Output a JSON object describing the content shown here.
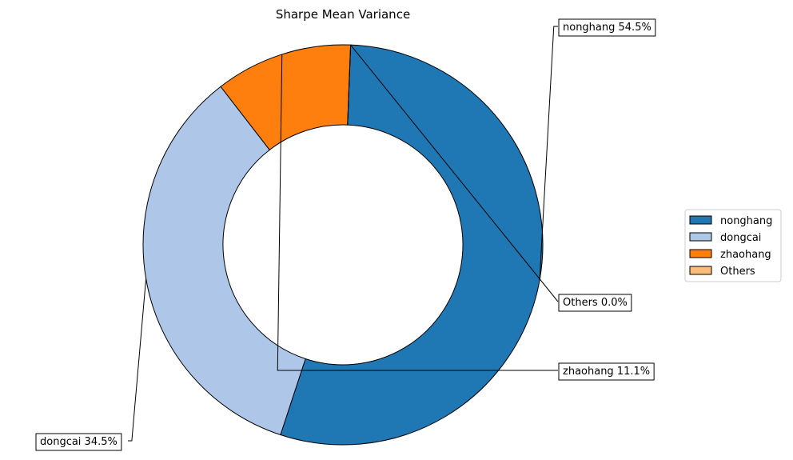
{
  "chart_data": {
    "type": "pie",
    "title": "Sharpe Mean Variance",
    "donut": true,
    "legend_position": "right",
    "slices": [
      {
        "name": "nonghang",
        "value": 54.5,
        "label": "nonghang 54.5%",
        "color": "#1f77b4"
      },
      {
        "name": "dongcai",
        "value": 34.5,
        "label": "dongcai 34.5%",
        "color": "#aec7e8"
      },
      {
        "name": "zhaohang",
        "value": 11.1,
        "label": "zhaohang 11.1%",
        "color": "#ff7f0e"
      },
      {
        "name": "Others",
        "value": 0.0,
        "label": "Others 0.0%",
        "color": "#ffbb78"
      }
    ]
  }
}
